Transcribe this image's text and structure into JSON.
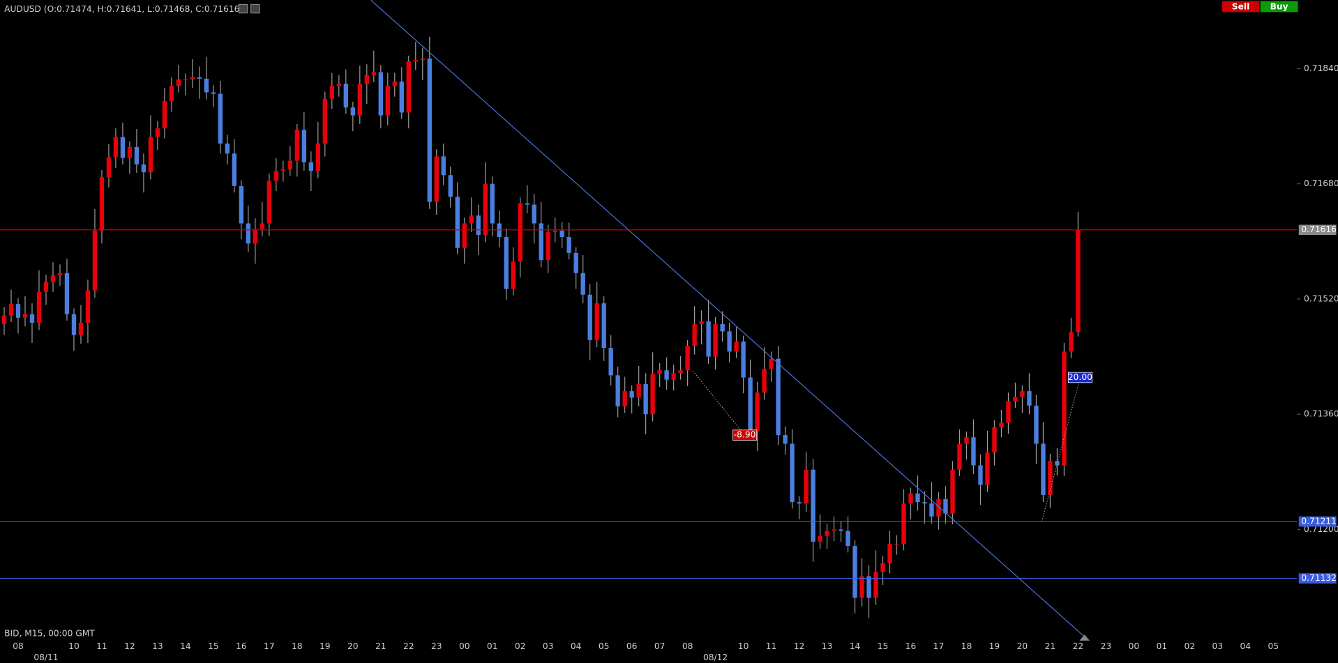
{
  "chart_data": {
    "type": "candlestick",
    "title": "AUDUSD (O:0.71474, H:0.71641, L:0.71468, C:0.71616)",
    "footer": "BID, M15, 00:00 GMT",
    "up_color": "#e8000b",
    "down_color": "#4a7fe0",
    "wick_color": "#9a9a9a",
    "xlim": [
      -0.6,
      185.4
    ],
    "ylim": [
      0.71029,
      0.71935
    ],
    "yticks": [
      {
        "value": 0.7184,
        "label": "0.71840"
      },
      {
        "value": 0.7168,
        "label": "0.71680"
      },
      {
        "value": 0.7152,
        "label": "0.71520"
      },
      {
        "value": 0.7136,
        "label": "0.71360"
      },
      {
        "value": 0.712,
        "label": "0.71200"
      }
    ],
    "xticks": [
      {
        "value": 2,
        "label": "08"
      },
      {
        "value": 10,
        "label": "10"
      },
      {
        "value": 14,
        "label": "11"
      },
      {
        "value": 18,
        "label": "12"
      },
      {
        "value": 22,
        "label": "13"
      },
      {
        "value": 26,
        "label": "14"
      },
      {
        "value": 30,
        "label": "15"
      },
      {
        "value": 34,
        "label": "16"
      },
      {
        "value": 38,
        "label": "17"
      },
      {
        "value": 42,
        "label": "18"
      },
      {
        "value": 46,
        "label": "19"
      },
      {
        "value": 50,
        "label": "20"
      },
      {
        "value": 54,
        "label": "21"
      },
      {
        "value": 58,
        "label": "22"
      },
      {
        "value": 62,
        "label": "23"
      },
      {
        "value": 66,
        "label": "00"
      },
      {
        "value": 70,
        "label": "01"
      },
      {
        "value": 74,
        "label": "02"
      },
      {
        "value": 78,
        "label": "03"
      },
      {
        "value": 82,
        "label": "04"
      },
      {
        "value": 86,
        "label": "05"
      },
      {
        "value": 90,
        "label": "06"
      },
      {
        "value": 94,
        "label": "07"
      },
      {
        "value": 98,
        "label": "08"
      },
      {
        "value": 106,
        "label": "10"
      },
      {
        "value": 110,
        "label": "11"
      },
      {
        "value": 114,
        "label": "12"
      },
      {
        "value": 118,
        "label": "13"
      },
      {
        "value": 122,
        "label": "14"
      },
      {
        "value": 126,
        "label": "15"
      },
      {
        "value": 130,
        "label": "16"
      },
      {
        "value": 134,
        "label": "17"
      },
      {
        "value": 138,
        "label": "18"
      },
      {
        "value": 142,
        "label": "19"
      },
      {
        "value": 146,
        "label": "20"
      },
      {
        "value": 150,
        "label": "21"
      },
      {
        "value": 154,
        "label": "22"
      },
      {
        "value": 158,
        "label": "23"
      },
      {
        "value": 162,
        "label": "00"
      },
      {
        "value": 166,
        "label": "01"
      },
      {
        "value": 170,
        "label": "02"
      },
      {
        "value": 174,
        "label": "03"
      },
      {
        "value": 178,
        "label": "04"
      },
      {
        "value": 182,
        "label": "05"
      }
    ],
    "dateticks": [
      {
        "value": 6,
        "label": "08/11"
      },
      {
        "value": 102,
        "label": "08/12"
      }
    ],
    "price_lines": [
      {
        "value": 0.71616,
        "color": "#d00000",
        "label_bg": "#8a8a8a"
      },
      {
        "value": 0.71211,
        "color": "#3a5ce0",
        "label_bg": "#3a5ce0"
      },
      {
        "value": 0.71132,
        "color": "#3a5ce0",
        "label_bg": "#3a5ce0"
      }
    ],
    "trendline": {
      "x": [
        52.6,
        154.8
      ],
      "y": [
        0.71935,
        0.71052
      ],
      "color": "#4a6fd8"
    },
    "annotations": [
      {
        "text": "-8.90",
        "from_x": 98.8,
        "from_y": 0.7142,
        "x": 106.2,
        "y": 0.71331,
        "color": "#d00000"
      },
      {
        "text": "20.00",
        "from_x": 148.8,
        "from_y": 0.71211,
        "x": 154.3,
        "y": 0.71411,
        "color": "#1a2ad0"
      }
    ],
    "open": [
      0.71485,
      0.71497,
      0.71513,
      0.71494,
      0.71499,
      0.71487,
      0.7153,
      0.71544,
      0.71553,
      0.71556,
      0.71499,
      0.7147,
      0.71487,
      0.71532,
      0.71615,
      0.71689,
      0.71717,
      0.71745,
      0.71716,
      0.71731,
      0.71707,
      0.71696,
      0.71745,
      0.71757,
      0.71795,
      0.71816,
      0.71825,
      0.71825,
      0.71828,
      0.71826,
      0.71807,
      0.71805,
      0.71736,
      0.71722,
      0.71677,
      0.71625,
      0.71597,
      0.71617,
      0.71625,
      0.71684,
      0.71698,
      0.717,
      0.71712,
      0.71755,
      0.7171,
      0.71698,
      0.71736,
      0.71798,
      0.71816,
      0.71819,
      0.71786,
      0.71775,
      0.71819,
      0.71831,
      0.71835,
      0.71775,
      0.71816,
      0.71822,
      0.71779,
      0.7185,
      0.71852,
      0.71854,
      0.71655,
      0.71718,
      0.71692,
      0.71662,
      0.71591,
      0.71625,
      0.71636,
      0.71609,
      0.7168,
      0.71625,
      0.71606,
      0.71534,
      0.71572,
      0.71653,
      0.71651,
      0.71625,
      0.71574,
      0.71613,
      0.71615,
      0.71606,
      0.71584,
      0.71556,
      0.71526,
      0.71463,
      0.71514,
      0.71452,
      0.71414,
      0.71371,
      0.71392,
      0.71383,
      0.71402,
      0.7136,
      0.71416,
      0.71421,
      0.71408,
      0.71417,
      0.71421,
      0.71455,
      0.71485,
      0.71489,
      0.7144,
      0.71485,
      0.71475,
      0.71447,
      0.71461,
      0.71411,
      0.71337,
      0.7139,
      0.71423,
      0.71437,
      0.71331,
      0.71319,
      0.71238,
      0.71236,
      0.71283,
      0.71183,
      0.71191,
      0.71198,
      0.712,
      0.71198,
      0.71177,
      0.71105,
      0.71135,
      0.71105,
      0.71141,
      0.71153,
      0.7118,
      0.7118,
      0.71236,
      0.7125,
      0.71238,
      0.71236,
      0.71218,
      0.71242,
      0.71222,
      0.71283,
      0.71319,
      0.71328,
      0.71289,
      0.71262,
      0.71307,
      0.71342,
      0.71348,
      0.71378,
      0.71384,
      0.71392,
      0.71372,
      0.71319,
      0.71248,
      0.71295,
      0.71289,
      0.71447,
      0.71474
    ],
    "close": [
      0.71497,
      0.71513,
      0.71494,
      0.71499,
      0.71487,
      0.7153,
      0.71544,
      0.71553,
      0.71556,
      0.71499,
      0.7147,
      0.71487,
      0.71532,
      0.71615,
      0.71689,
      0.71717,
      0.71745,
      0.71716,
      0.71731,
      0.71707,
      0.71696,
      0.71745,
      0.71757,
      0.71795,
      0.71816,
      0.71825,
      0.71825,
      0.71828,
      0.71826,
      0.71807,
      0.71805,
      0.71736,
      0.71722,
      0.71677,
      0.71625,
      0.71597,
      0.71617,
      0.71625,
      0.71684,
      0.71698,
      0.717,
      0.71712,
      0.71755,
      0.7171,
      0.71698,
      0.71736,
      0.71798,
      0.71816,
      0.71819,
      0.71786,
      0.71775,
      0.71819,
      0.71831,
      0.71835,
      0.71775,
      0.71816,
      0.71822,
      0.71779,
      0.7185,
      0.71852,
      0.71854,
      0.71655,
      0.71718,
      0.71692,
      0.71662,
      0.71591,
      0.71625,
      0.71636,
      0.71609,
      0.7168,
      0.71625,
      0.71606,
      0.71534,
      0.71572,
      0.71653,
      0.71651,
      0.71625,
      0.71574,
      0.71613,
      0.71615,
      0.71606,
      0.71584,
      0.71556,
      0.71526,
      0.71463,
      0.71514,
      0.71452,
      0.71414,
      0.71371,
      0.71392,
      0.71383,
      0.71402,
      0.7136,
      0.71416,
      0.71421,
      0.71408,
      0.71417,
      0.71421,
      0.71455,
      0.71485,
      0.71489,
      0.7144,
      0.71485,
      0.71475,
      0.71447,
      0.71461,
      0.71411,
      0.71337,
      0.7139,
      0.71423,
      0.71437,
      0.71331,
      0.71319,
      0.71238,
      0.71236,
      0.71283,
      0.71183,
      0.71191,
      0.71198,
      0.712,
      0.71198,
      0.71177,
      0.71105,
      0.71135,
      0.71105,
      0.71141,
      0.71153,
      0.7118,
      0.7118,
      0.71236,
      0.7125,
      0.71238,
      0.71236,
      0.71218,
      0.71242,
      0.71222,
      0.71283,
      0.71319,
      0.71328,
      0.71289,
      0.71262,
      0.71307,
      0.71342,
      0.71348,
      0.71378,
      0.71384,
      0.71392,
      0.71372,
      0.71319,
      0.71248,
      0.71295,
      0.71289,
      0.71447,
      0.71474,
      0.71616
    ],
    "high": [
      0.71509,
      0.71533,
      0.71521,
      0.71524,
      0.71514,
      0.7156,
      0.71554,
      0.71571,
      0.71568,
      0.71576,
      0.71507,
      0.71512,
      0.71547,
      0.71645,
      0.71699,
      0.71735,
      0.71757,
      0.71765,
      0.71739,
      0.71756,
      0.71722,
      0.71775,
      0.71767,
      0.71813,
      0.71828,
      0.71845,
      0.71833,
      0.71853,
      0.71843,
      0.71856,
      0.71817,
      0.71823,
      0.71748,
      0.71742,
      0.71685,
      0.7165,
      0.71632,
      0.71655,
      0.71694,
      0.71716,
      0.71712,
      0.71732,
      0.71763,
      0.7178,
      0.71725,
      0.71766,
      0.71808,
      0.71834,
      0.71831,
      0.71839,
      0.71794,
      0.71844,
      0.71846,
      0.71865,
      0.71845,
      0.71834,
      0.71834,
      0.71842,
      0.71858,
      0.71877,
      0.71869,
      0.71884,
      0.71728,
      0.71736,
      0.71704,
      0.71682,
      0.71633,
      0.71661,
      0.71651,
      0.7171,
      0.7169,
      0.71643,
      0.71618,
      0.71592,
      0.71661,
      0.71678,
      0.71666,
      0.71655,
      0.71623,
      0.71633,
      0.71627,
      0.71626,
      0.71592,
      0.71581,
      0.71541,
      0.71544,
      0.71524,
      0.7147,
      0.71426,
      0.71412,
      0.714,
      0.71427,
      0.71417,
      0.71446,
      0.71431,
      0.71439,
      0.71429,
      0.71441,
      0.71463,
      0.7151,
      0.71504,
      0.71519,
      0.71495,
      0.71503,
      0.71487,
      0.71481,
      0.71469,
      0.71436,
      0.71405,
      0.71453,
      0.71447,
      0.71455,
      0.71343,
      0.71339,
      0.71246,
      0.71308,
      0.71298,
      0.71221,
      0.71208,
      0.71218,
      0.71212,
      0.71218,
      0.71185,
      0.7116,
      0.7115,
      0.71171,
      0.71163,
      0.71198,
      0.71192,
      0.71256,
      0.71258,
      0.71275,
      0.71253,
      0.71266,
      0.71252,
      0.7126,
      0.71295,
      0.71339,
      0.71336,
      0.71353,
      0.71304,
      0.71337,
      0.71352,
      0.71366,
      0.7139,
      0.71404,
      0.714,
      0.71417,
      0.71387,
      0.71349,
      0.71305,
      0.71313,
      0.71459,
      0.71494,
      0.71641
    ],
    "low": [
      0.7147,
      0.71488,
      0.71472,
      0.71482,
      0.71459,
      0.71477,
      0.71512,
      0.7153,
      0.71538,
      0.7149,
      0.71448,
      0.71458,
      0.71459,
      0.71522,
      0.71597,
      0.71675,
      0.71702,
      0.71707,
      0.71694,
      0.71695,
      0.71668,
      0.71686,
      0.71727,
      0.71743,
      0.7178,
      0.71807,
      0.71803,
      0.71813,
      0.71798,
      0.71797,
      0.71787,
      0.71722,
      0.71707,
      0.71668,
      0.71603,
      0.71585,
      0.71569,
      0.71607,
      0.71607,
      0.7167,
      0.71683,
      0.71691,
      0.7169,
      0.71698,
      0.7167,
      0.71688,
      0.71718,
      0.71784,
      0.71801,
      0.71777,
      0.71753,
      0.71763,
      0.71791,
      0.71821,
      0.71757,
      0.71761,
      0.71801,
      0.7177,
      0.71757,
      0.71838,
      0.71824,
      0.71645,
      0.71637,
      0.71678,
      0.71647,
      0.71582,
      0.71569,
      0.71613,
      0.71581,
      0.71599,
      0.71607,
      0.71592,
      0.71519,
      0.71525,
      0.7155,
      0.71639,
      0.71597,
      0.71564,
      0.71556,
      0.71599,
      0.71591,
      0.71575,
      0.71534,
      0.71514,
      0.71435,
      0.71453,
      0.71434,
      0.714,
      0.71356,
      0.71362,
      0.71361,
      0.71371,
      0.71332,
      0.7135,
      0.71398,
      0.71394,
      0.71393,
      0.71408,
      0.71399,
      0.71443,
      0.71457,
      0.7143,
      0.71422,
      0.71461,
      0.71432,
      0.71438,
      0.71389,
      0.71325,
      0.71309,
      0.7138,
      0.71405,
      0.71317,
      0.71304,
      0.71229,
      0.71214,
      0.71224,
      0.71155,
      0.71173,
      0.71173,
      0.71184,
      0.71183,
      0.71168,
      0.71083,
      0.71093,
      0.71077,
      0.71095,
      0.71123,
      0.71139,
      0.71165,
      0.71171,
      0.71214,
      0.71226,
      0.71208,
      0.71208,
      0.712,
      0.71208,
      0.71207,
      0.71274,
      0.71297,
      0.71277,
      0.71234,
      0.71252,
      0.71289,
      0.71328,
      0.71333,
      0.71369,
      0.71362,
      0.7136,
      0.71291,
      0.71238,
      0.7123,
      0.71275,
      0.71274,
      0.71438,
      0.71468
    ]
  },
  "buttons": [
    "Sell",
    "Buy"
  ]
}
